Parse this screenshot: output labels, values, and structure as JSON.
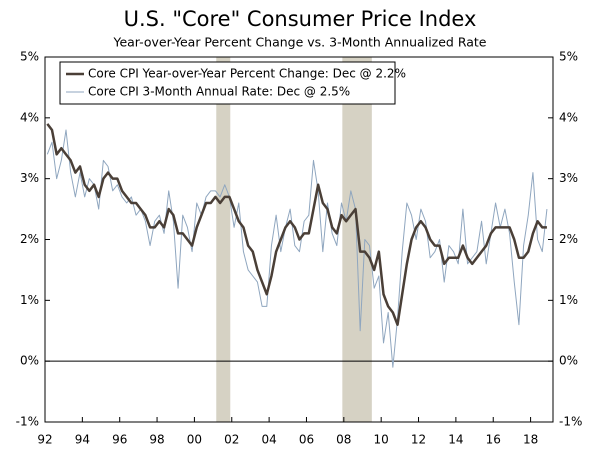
{
  "chart_data": {
    "type": "line",
    "title": "U.S. \"Core\" Consumer Price Index",
    "subtitle": "Year-over-Year Percent Change vs. 3-Month Annualized Rate",
    "x": [
      1992.125,
      1992.375,
      1992.625,
      1992.875,
      1993.125,
      1993.375,
      1993.625,
      1993.875,
      1994.125,
      1994.375,
      1994.625,
      1994.875,
      1995.125,
      1995.375,
      1995.625,
      1995.875,
      1996.125,
      1996.375,
      1996.625,
      1996.875,
      1997.125,
      1997.375,
      1997.625,
      1997.875,
      1998.125,
      1998.375,
      1998.625,
      1998.875,
      1999.125,
      1999.375,
      1999.625,
      1999.875,
      2000.125,
      2000.375,
      2000.625,
      2000.875,
      2001.125,
      2001.375,
      2001.625,
      2001.875,
      2002.125,
      2002.375,
      2002.625,
      2002.875,
      2003.125,
      2003.375,
      2003.625,
      2003.875,
      2004.125,
      2004.375,
      2004.625,
      2004.875,
      2005.125,
      2005.375,
      2005.625,
      2005.875,
      2006.125,
      2006.375,
      2006.625,
      2006.875,
      2007.125,
      2007.375,
      2007.625,
      2007.875,
      2008.125,
      2008.375,
      2008.625,
      2008.875,
      2009.125,
      2009.375,
      2009.625,
      2009.875,
      2010.125,
      2010.375,
      2010.625,
      2010.875,
      2011.125,
      2011.375,
      2011.625,
      2011.875,
      2012.125,
      2012.375,
      2012.625,
      2012.875,
      2013.125,
      2013.375,
      2013.625,
      2013.875,
      2014.125,
      2014.375,
      2014.625,
      2014.875,
      2015.125,
      2015.375,
      2015.625,
      2015.875,
      2016.125,
      2016.375,
      2016.625,
      2016.875,
      2017.125,
      2017.375,
      2017.625,
      2017.875,
      2018.125,
      2018.375,
      2018.625,
      2018.875
    ],
    "series": [
      {
        "name": "Core CPI Year-over-Year Percent Change: Dec @ 2.2%",
        "color": "#4a3f37",
        "width": 2.5,
        "values": [
          3.9,
          3.8,
          3.4,
          3.5,
          3.4,
          3.3,
          3.1,
          3.2,
          2.9,
          2.8,
          2.9,
          2.7,
          3.0,
          3.1,
          3.0,
          3.0,
          2.8,
          2.7,
          2.6,
          2.6,
          2.5,
          2.4,
          2.2,
          2.2,
          2.3,
          2.2,
          2.5,
          2.4,
          2.1,
          2.1,
          2.0,
          1.9,
          2.2,
          2.4,
          2.6,
          2.6,
          2.7,
          2.6,
          2.7,
          2.7,
          2.5,
          2.3,
          2.2,
          1.9,
          1.8,
          1.5,
          1.3,
          1.1,
          1.4,
          1.8,
          2.0,
          2.2,
          2.3,
          2.2,
          2.0,
          2.1,
          2.1,
          2.5,
          2.9,
          2.6,
          2.5,
          2.2,
          2.1,
          2.4,
          2.3,
          2.4,
          2.5,
          1.8,
          1.8,
          1.7,
          1.5,
          1.8,
          1.1,
          0.9,
          0.8,
          0.6,
          1.1,
          1.6,
          2.0,
          2.2,
          2.3,
          2.2,
          2.0,
          1.9,
          1.9,
          1.6,
          1.7,
          1.7,
          1.7,
          1.9,
          1.7,
          1.6,
          1.7,
          1.8,
          1.9,
          2.1,
          2.2,
          2.2,
          2.2,
          2.2,
          2.0,
          1.7,
          1.7,
          1.8,
          2.1,
          2.3,
          2.2,
          2.2
        ]
      },
      {
        "name": "Core CPI 3-Month Annual Rate: Dec @ 2.5%",
        "color": "#8fa6bf",
        "width": 1,
        "values": [
          3.4,
          3.6,
          3.0,
          3.3,
          3.8,
          3.1,
          2.7,
          3.1,
          2.7,
          3.0,
          2.9,
          2.5,
          3.3,
          3.2,
          2.8,
          2.9,
          2.7,
          2.6,
          2.7,
          2.4,
          2.5,
          2.3,
          1.9,
          2.3,
          2.4,
          2.1,
          2.8,
          2.3,
          1.2,
          2.4,
          2.2,
          1.8,
          2.6,
          2.4,
          2.7,
          2.8,
          2.8,
          2.7,
          2.9,
          2.7,
          2.2,
          2.6,
          1.8,
          1.5,
          1.4,
          1.3,
          0.9,
          0.9,
          1.9,
          2.4,
          1.8,
          2.2,
          2.5,
          1.9,
          1.8,
          2.3,
          2.4,
          3.3,
          2.8,
          1.8,
          2.6,
          2.1,
          1.9,
          2.6,
          2.3,
          2.8,
          2.5,
          0.5,
          2.0,
          1.9,
          1.2,
          1.4,
          0.3,
          0.8,
          -0.1,
          0.7,
          1.8,
          2.6,
          2.4,
          2.0,
          2.5,
          2.3,
          1.7,
          1.8,
          2.0,
          1.3,
          1.9,
          1.8,
          1.6,
          2.5,
          1.6,
          1.7,
          1.8,
          2.3,
          1.6,
          2.1,
          2.6,
          2.2,
          2.5,
          2.1,
          1.3,
          0.6,
          1.9,
          2.4,
          3.1,
          2.0,
          1.8,
          2.5
        ]
      }
    ],
    "shaded_periods": [
      [
        2001.17,
        2001.92
      ],
      [
        2007.92,
        2009.5
      ]
    ],
    "shade_color": "#d6d2c4",
    "xlim": [
      1992,
      2019.2
    ],
    "xticks": [
      {
        "value": 1992,
        "label": "92"
      },
      {
        "value": 1994,
        "label": "94"
      },
      {
        "value": 1996,
        "label": "96"
      },
      {
        "value": 1998,
        "label": "98"
      },
      {
        "value": 2000,
        "label": "00"
      },
      {
        "value": 2002,
        "label": "02"
      },
      {
        "value": 2004,
        "label": "04"
      },
      {
        "value": 2006,
        "label": "06"
      },
      {
        "value": 2008,
        "label": "08"
      },
      {
        "value": 2010,
        "label": "10"
      },
      {
        "value": 2012,
        "label": "12"
      },
      {
        "value": 2014,
        "label": "14"
      },
      {
        "value": 2016,
        "label": "16"
      },
      {
        "value": 2018,
        "label": "18"
      }
    ],
    "ylim": [
      -1,
      5
    ],
    "yticks": [
      {
        "value": -1,
        "label": "-1%"
      },
      {
        "value": 0,
        "label": "0%"
      },
      {
        "value": 1,
        "label": "1%"
      },
      {
        "value": 2,
        "label": "2%"
      },
      {
        "value": 3,
        "label": "3%"
      },
      {
        "value": 4,
        "label": "4%"
      },
      {
        "value": 5,
        "label": "5%"
      }
    ],
    "zero_line": true,
    "legend": "upper left"
  }
}
